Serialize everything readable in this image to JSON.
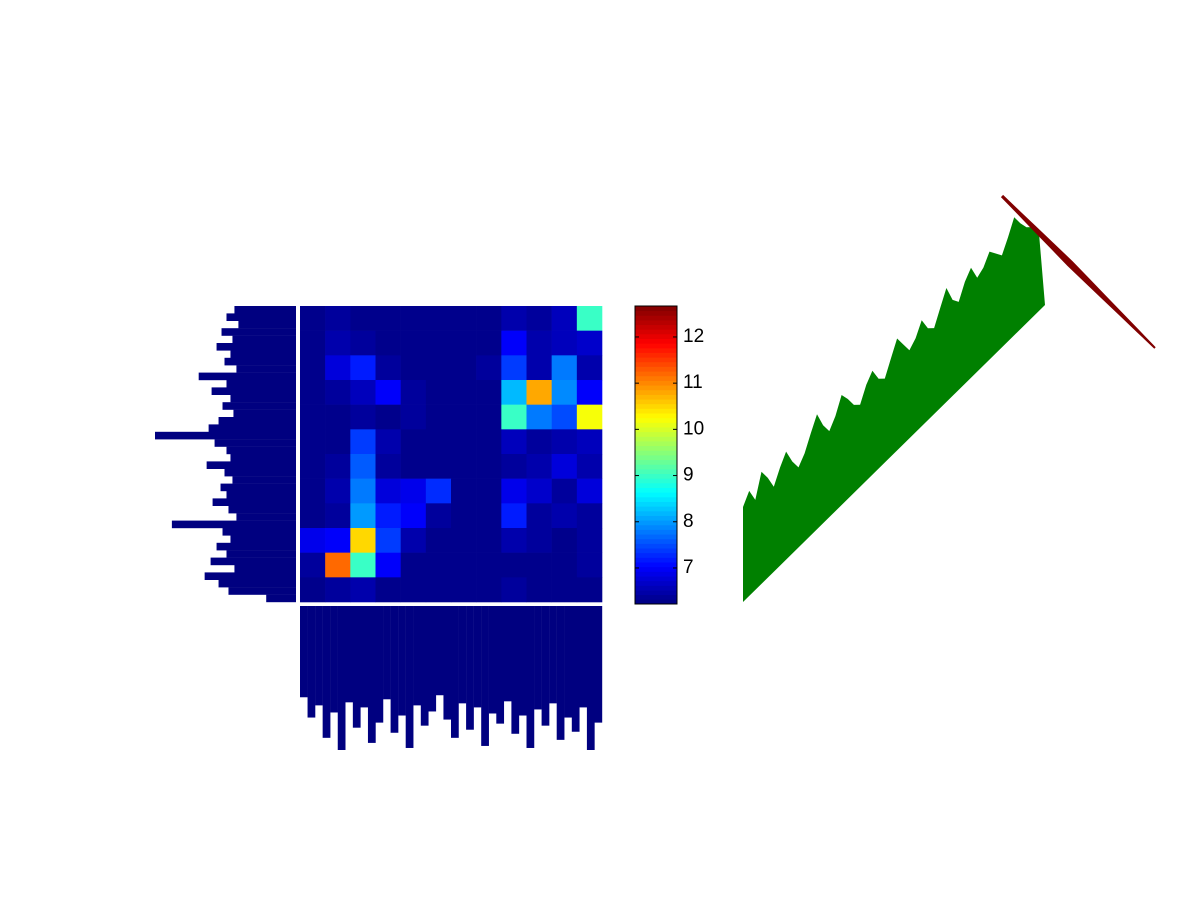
{
  "chart_data": {
    "type": "heatmap",
    "colormap": "jet",
    "clim": [
      6.22,
      12.67
    ],
    "colorbar_ticks": [
      7,
      8,
      9,
      10,
      11,
      12
    ],
    "matrix": [
      [
        6.3,
        6.4,
        6.3,
        6.3,
        6.3,
        6.3,
        6.3,
        6.3,
        6.5,
        6.4,
        6.6,
        9.0
      ],
      [
        6.3,
        6.5,
        6.4,
        6.3,
        6.3,
        6.3,
        6.3,
        6.3,
        7.0,
        6.5,
        6.6,
        6.7
      ],
      [
        6.3,
        6.8,
        7.2,
        6.4,
        6.3,
        6.3,
        6.3,
        6.4,
        7.4,
        6.5,
        7.8,
        6.5
      ],
      [
        6.3,
        6.4,
        6.6,
        7.0,
        6.4,
        6.3,
        6.3,
        6.3,
        8.2,
        10.8,
        7.9,
        7.0
      ],
      [
        6.3,
        6.3,
        6.4,
        6.3,
        6.4,
        6.3,
        6.3,
        6.3,
        9.0,
        7.8,
        7.5,
        10.2
      ],
      [
        6.3,
        6.3,
        7.4,
        6.5,
        6.3,
        6.3,
        6.3,
        6.3,
        6.6,
        6.4,
        6.5,
        6.6
      ],
      [
        6.3,
        6.4,
        7.6,
        6.4,
        6.3,
        6.3,
        6.3,
        6.3,
        6.4,
        6.5,
        6.8,
        6.5
      ],
      [
        6.3,
        6.5,
        7.8,
        6.8,
        6.9,
        7.3,
        6.3,
        6.3,
        6.9,
        6.7,
        6.4,
        6.8
      ],
      [
        6.3,
        6.4,
        8.0,
        7.2,
        7.0,
        6.4,
        6.3,
        6.3,
        7.2,
        6.4,
        6.5,
        6.4
      ],
      [
        6.9,
        7.0,
        10.5,
        7.4,
        6.5,
        6.3,
        6.3,
        6.3,
        6.5,
        6.4,
        6.3,
        6.4
      ],
      [
        6.4,
        11.2,
        9.0,
        7.0,
        6.3,
        6.3,
        6.3,
        6.3,
        6.3,
        6.3,
        6.3,
        6.4
      ],
      [
        6.3,
        6.4,
        6.5,
        6.3,
        6.3,
        6.3,
        6.3,
        6.3,
        6.4,
        6.3,
        6.3,
        6.3
      ]
    ],
    "row_profile": {
      "color": "#000080",
      "values": [
        62,
        70,
        58,
        75,
        64,
        80,
        66,
        72,
        60,
        98,
        70,
        85,
        66,
        74,
        63,
        78,
        88,
        142,
        82,
        70,
        66,
        90,
        72,
        64,
        76,
        70,
        84,
        68,
        60,
        125,
        74,
        66,
        80,
        70,
        86,
        62,
        92,
        78,
        68,
        30
      ]
    },
    "column_profile": {
      "color": "#000080",
      "values": [
        90,
        110,
        98,
        130,
        105,
        142,
        95,
        120,
        100,
        135,
        115,
        92,
        125,
        108,
        140,
        98,
        118,
        104,
        88,
        112,
        130,
        96,
        122,
        100,
        138,
        106,
        116,
        94,
        126,
        108,
        140,
        102,
        118,
        96,
        132,
        110,
        124,
        100,
        142,
        115
      ]
    },
    "diagonal_profile": {
      "color": "#008000",
      "values": [
        95,
        105,
        90,
        112,
        100,
        85,
        98,
        108,
        92,
        80,
        88,
        102,
        115,
        98,
        86,
        95,
        110,
        100,
        88,
        82,
        96,
        104,
        90,
        84,
        98,
        112,
        100,
        88,
        94,
        106,
        92,
        86,
        100,
        114,
        96,
        88,
        102,
        110,
        94,
        98,
        108,
        100,
        92,
        104,
        118,
        106,
        96,
        90,
        80,
        0
      ]
    },
    "diagonal_line": {
      "color": "#800000",
      "values": [
        1.5,
        2,
        2.5,
        3,
        3.5,
        3,
        2.5,
        2,
        1.5,
        1
      ]
    }
  }
}
